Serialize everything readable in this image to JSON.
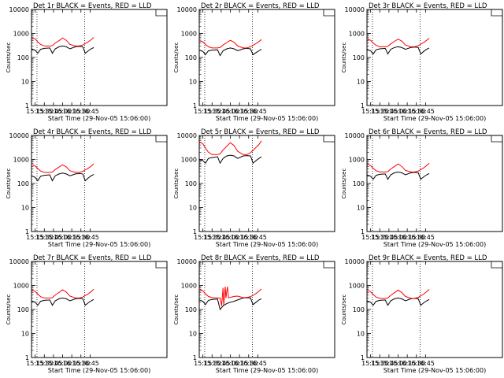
{
  "figure": {
    "ylabel": "Counts/sec",
    "xlabel": "Start Time (29-Nov-05 15:06:00)",
    "xlim": [
      15.15,
      18.85
    ],
    "ylim": [
      1,
      10000
    ],
    "yscale": "log",
    "ytick_labels": [
      "1",
      "10",
      "100",
      "1000",
      "10000"
    ],
    "ytick_values": [
      1,
      10,
      100,
      1000,
      10000
    ],
    "xtick_labels": [
      "15:15",
      "15:30",
      "15:45",
      "16:00",
      "16:15",
      "16:30",
      "16:45"
    ],
    "xtick_values": [
      15.25,
      15.5,
      15.75,
      16.0,
      16.25,
      16.5,
      16.75
    ],
    "vertical_dotted_lines": [
      15.3,
      16.6
    ],
    "colors": {
      "events": "#000000",
      "lld": "#ff0000"
    }
  },
  "chart_data": [
    {
      "type": "line",
      "title": "Det 1r BLACK = Events, RED = LLD",
      "x": [
        15.15,
        15.25,
        15.32,
        15.4,
        15.5,
        15.65,
        15.72,
        15.8,
        15.9,
        16.0,
        16.1,
        16.2,
        16.35,
        16.45,
        16.55,
        16.62,
        16.7,
        16.78,
        16.85
      ],
      "series": [
        {
          "values": [
            230,
            200,
            150,
            220,
            240,
            250,
            150,
            230,
            280,
            300,
            280,
            230,
            280,
            290,
            280,
            150,
            190,
            230,
            260
          ]
        },
        {
          "values": [
            650,
            600,
            450,
            350,
            300,
            300,
            310,
            400,
            500,
            650,
            520,
            350,
            300,
            300,
            330,
            380,
            450,
            550,
            680
          ]
        }
      ]
    },
    {
      "type": "line",
      "title": "Det 2r BLACK = Events, RED = LLD",
      "x": [
        15.15,
        15.25,
        15.32,
        15.4,
        15.5,
        15.65,
        15.72,
        15.8,
        15.9,
        16.0,
        16.1,
        16.2,
        16.35,
        16.45,
        16.55,
        16.62,
        16.7,
        16.78,
        16.85
      ],
      "series": [
        {
          "values": [
            200,
            180,
            130,
            190,
            200,
            210,
            120,
            190,
            230,
            250,
            230,
            190,
            230,
            240,
            230,
            130,
            160,
            190,
            220
          ]
        },
        {
          "values": [
            500,
            450,
            350,
            280,
            250,
            250,
            260,
            330,
            420,
            520,
            430,
            300,
            250,
            250,
            280,
            320,
            380,
            460,
            560
          ]
        }
      ]
    },
    {
      "type": "line",
      "title": "Det 3r BLACK = Events, RED = LLD",
      "x": [
        15.15,
        15.25,
        15.32,
        15.4,
        15.5,
        15.65,
        15.72,
        15.8,
        15.9,
        16.0,
        16.1,
        16.2,
        16.35,
        16.45,
        16.55,
        16.62,
        16.7,
        16.78,
        16.85
      ],
      "series": [
        {
          "values": [
            220,
            190,
            140,
            210,
            230,
            240,
            140,
            220,
            260,
            280,
            260,
            220,
            260,
            270,
            260,
            140,
            180,
            220,
            250
          ]
        },
        {
          "values": [
            600,
            520,
            400,
            320,
            280,
            280,
            290,
            370,
            470,
            580,
            480,
            330,
            280,
            280,
            310,
            360,
            420,
            520,
            640
          ]
        }
      ]
    },
    {
      "type": "line",
      "title": "Det 4r BLACK = Events, RED = LLD",
      "x": [
        15.15,
        15.25,
        15.32,
        15.4,
        15.5,
        15.65,
        15.72,
        15.8,
        15.9,
        16.0,
        16.1,
        16.2,
        16.35,
        16.45,
        16.55,
        16.62,
        16.7,
        16.78,
        16.85
      ],
      "series": [
        {
          "values": [
            210,
            180,
            130,
            200,
            220,
            230,
            130,
            210,
            250,
            270,
            250,
            210,
            250,
            260,
            250,
            130,
            170,
            210,
            240
          ]
        },
        {
          "values": [
            620,
            540,
            420,
            330,
            290,
            290,
            300,
            380,
            480,
            600,
            490,
            340,
            290,
            290,
            320,
            370,
            430,
            530,
            660
          ]
        }
      ]
    },
    {
      "type": "line",
      "title": "Det 5r BLACK = Events, RED = LLD",
      "x": [
        15.15,
        15.25,
        15.32,
        15.4,
        15.5,
        15.65,
        15.72,
        15.8,
        15.9,
        16.0,
        16.1,
        16.2,
        16.35,
        16.45,
        16.55,
        16.62,
        16.7,
        16.78,
        16.85
      ],
      "series": [
        {
          "values": [
            1000,
            900,
            700,
            1100,
            1200,
            1300,
            700,
            1100,
            1400,
            1500,
            1400,
            1100,
            1400,
            1450,
            1400,
            700,
            900,
            1100,
            1300
          ]
        },
        {
          "values": [
            5500,
            4500,
            3000,
            2000,
            1600,
            1600,
            1700,
            2500,
            3500,
            5000,
            3800,
            2200,
            1600,
            1600,
            1900,
            2400,
            3200,
            4200,
            6000
          ]
        }
      ]
    },
    {
      "type": "line",
      "title": "Det 6r BLACK = Events, RED = LLD",
      "x": [
        15.15,
        15.25,
        15.32,
        15.4,
        15.5,
        15.65,
        15.72,
        15.8,
        15.9,
        16.0,
        16.1,
        16.2,
        16.35,
        16.45,
        16.55,
        16.62,
        16.7,
        16.78,
        16.85
      ],
      "series": [
        {
          "values": [
            230,
            200,
            150,
            220,
            240,
            250,
            150,
            230,
            280,
            300,
            280,
            230,
            280,
            290,
            280,
            150,
            190,
            230,
            260
          ]
        },
        {
          "values": [
            650,
            560,
            430,
            340,
            300,
            300,
            310,
            400,
            510,
            650,
            520,
            350,
            300,
            300,
            330,
            380,
            450,
            560,
            700
          ]
        }
      ]
    },
    {
      "type": "line",
      "title": "Det 7r BLACK = Events, RED = LLD",
      "x": [
        15.15,
        15.25,
        15.32,
        15.4,
        15.5,
        15.65,
        15.72,
        15.8,
        15.9,
        16.0,
        16.1,
        16.2,
        16.35,
        16.45,
        16.55,
        16.62,
        16.7,
        16.78,
        16.85
      ],
      "series": [
        {
          "values": [
            230,
            200,
            150,
            220,
            240,
            250,
            150,
            230,
            280,
            300,
            280,
            230,
            280,
            290,
            280,
            150,
            190,
            230,
            260
          ]
        },
        {
          "values": [
            660,
            570,
            440,
            340,
            300,
            300,
            310,
            400,
            510,
            660,
            530,
            360,
            300,
            300,
            330,
            380,
            450,
            560,
            700
          ]
        }
      ]
    },
    {
      "type": "line",
      "title": "Det 8r BLACK = Events, RED = LLD",
      "x": [
        15.15,
        15.25,
        15.32,
        15.4,
        15.5,
        15.65,
        15.72,
        15.76,
        15.8,
        15.82,
        15.86,
        15.88,
        15.92,
        15.95,
        16.0,
        16.1,
        16.2,
        16.35,
        16.45,
        16.55,
        16.62,
        16.7,
        16.78,
        16.85
      ],
      "series": [
        {
          "values": [
            250,
            220,
            160,
            240,
            260,
            270,
            100,
            120,
            140,
            150,
            160,
            170,
            180,
            190,
            200,
            220,
            250,
            300,
            310,
            300,
            160,
            200,
            250,
            280
          ]
        },
        {
          "values": [
            700,
            600,
            450,
            350,
            310,
            300,
            300,
            140,
            800,
            150,
            900,
            300,
            900,
            310,
            320,
            350,
            360,
            310,
            320,
            340,
            390,
            460,
            580,
            720
          ]
        }
      ]
    },
    {
      "type": "line",
      "title": "Det 9r BLACK = Events, RED = LLD",
      "x": [
        15.15,
        15.25,
        15.32,
        15.4,
        15.5,
        15.65,
        15.72,
        15.8,
        15.9,
        16.0,
        16.1,
        16.2,
        16.35,
        16.45,
        16.55,
        16.62,
        16.7,
        16.78,
        16.85
      ],
      "series": [
        {
          "values": [
            230,
            200,
            150,
            220,
            240,
            250,
            150,
            230,
            280,
            300,
            280,
            230,
            280,
            290,
            280,
            150,
            190,
            230,
            260
          ]
        },
        {
          "values": [
            640,
            550,
            420,
            330,
            290,
            290,
            300,
            390,
            500,
            640,
            510,
            350,
            290,
            290,
            320,
            370,
            440,
            550,
            690
          ]
        }
      ]
    }
  ]
}
